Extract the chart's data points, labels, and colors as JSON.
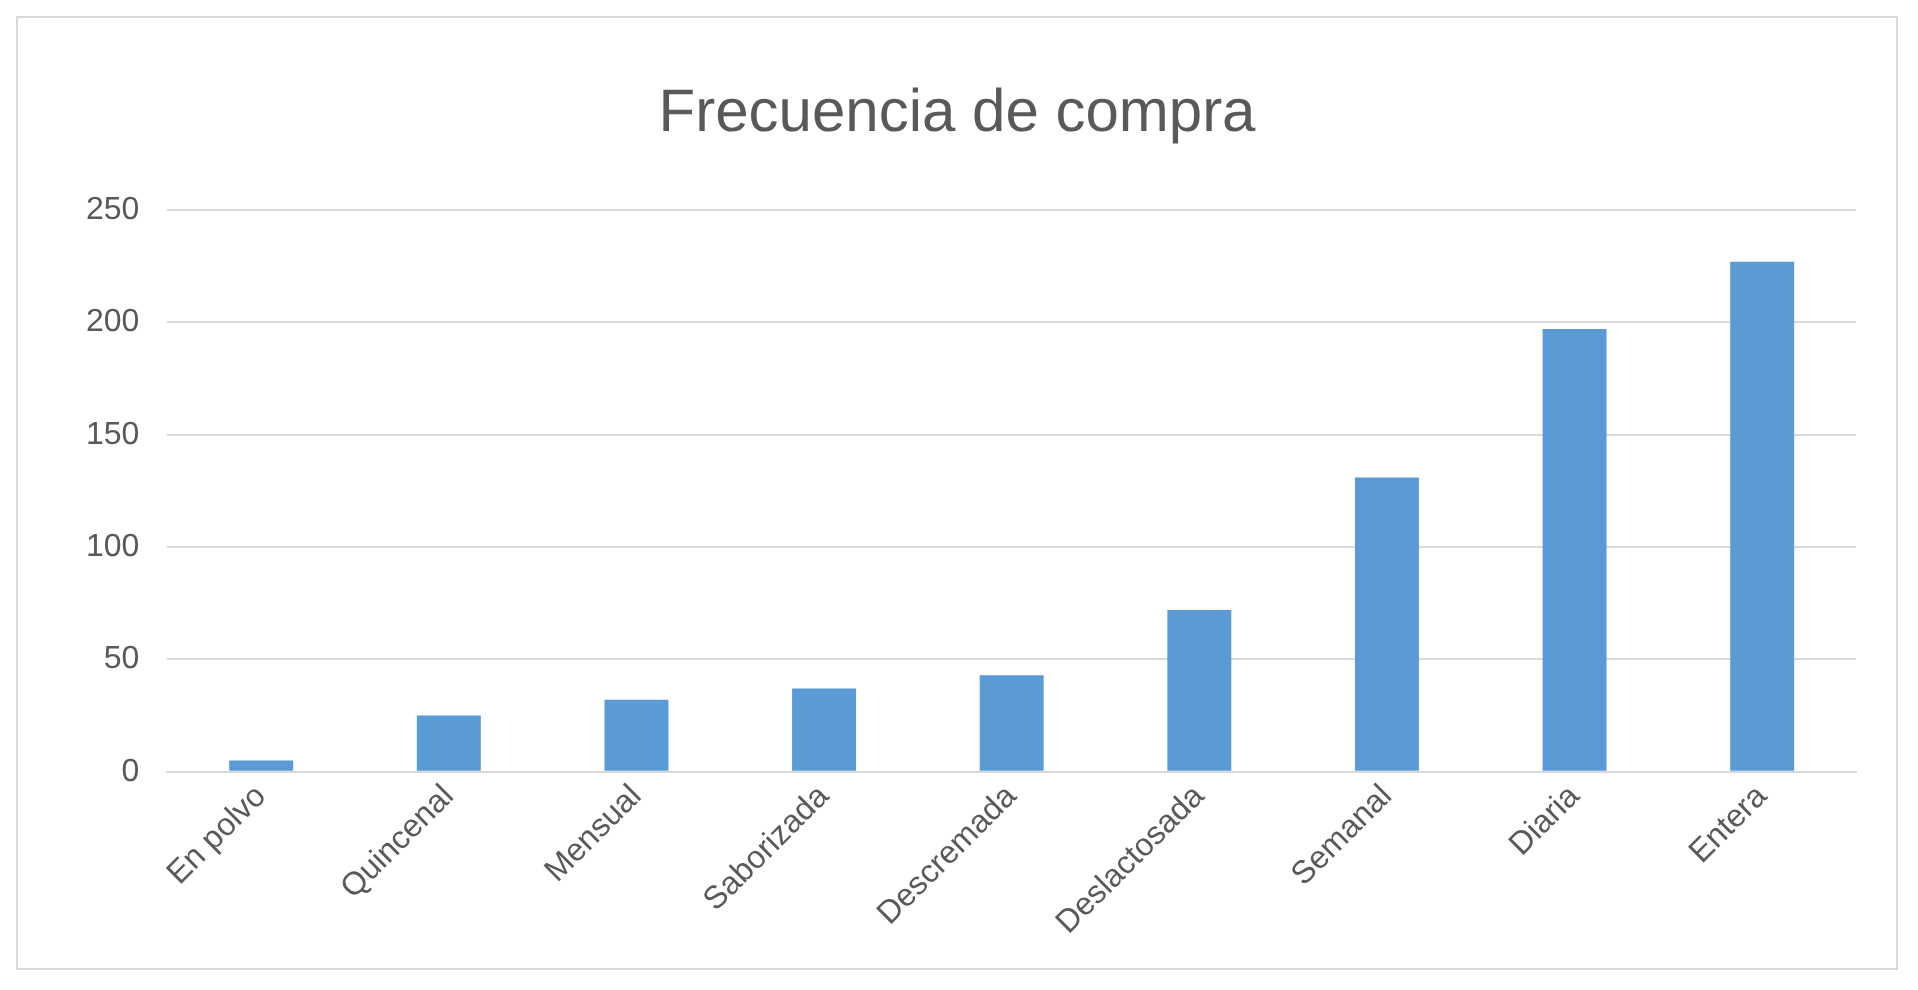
{
  "chart_data": {
    "type": "bar",
    "title": "Frecuencia de compra",
    "categories": [
      "En polvo",
      "Quincenal",
      "Mensual",
      "Saborizada",
      "Descremada",
      "Deslactosada",
      "Semanal",
      "Diaria",
      "Entera"
    ],
    "values": [
      5,
      25,
      32,
      37,
      43,
      72,
      131,
      197,
      227
    ],
    "color": "#5b9bd5",
    "ylim": [
      0,
      250
    ],
    "yticks": [
      0,
      50,
      100,
      150,
      200,
      250
    ],
    "grid": "y",
    "legend": false
  }
}
